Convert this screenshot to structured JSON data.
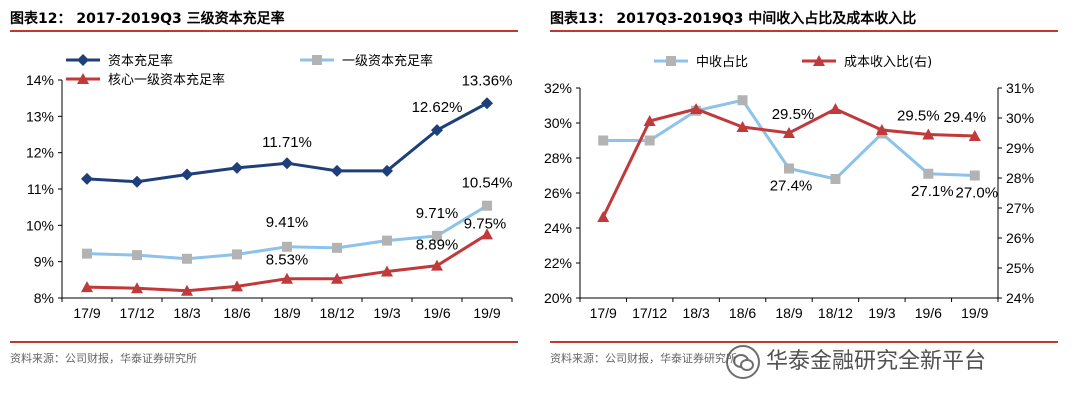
{
  "left": {
    "title": "图表12：  2017-2019Q3 三级资本充足率",
    "source": "资料来源：公司财报，华泰证券研究所"
  },
  "right": {
    "title": "图表13：  2017Q3-2019Q3 中间收入占比及成本收入比",
    "source": "资料来源：公司财报，华泰证券研究所"
  },
  "watermark": {
    "text": "华泰金融研究全新平台",
    "icon": "wechat-icon"
  },
  "chart_data": [
    {
      "type": "line",
      "categories": [
        "17/9",
        "17/12",
        "18/3",
        "18/6",
        "18/9",
        "18/12",
        "19/3",
        "19/6",
        "19/9"
      ],
      "ylim": [
        8,
        14
      ],
      "yticks": [
        "8%",
        "9%",
        "10%",
        "11%",
        "12%",
        "13%",
        "14%"
      ],
      "series": [
        {
          "name": "资本充足率",
          "color": "#1f3f7a",
          "marker": "diamond",
          "values": [
            11.28,
            11.2,
            11.4,
            11.58,
            11.71,
            11.5,
            11.5,
            12.62,
            13.36
          ],
          "labels": {
            "4": "11.71%",
            "7": "12.62%",
            "8": "13.36%"
          }
        },
        {
          "name": "一级资本充足率",
          "color": "#8dc3ea",
          "marker": "square",
          "values": [
            9.22,
            9.18,
            9.08,
            9.2,
            9.41,
            9.38,
            9.58,
            9.71,
            10.54
          ],
          "labels": {
            "4": "9.41%",
            "7": "9.71%",
            "8": "10.54%"
          }
        },
        {
          "name": "核心一级资本充足率",
          "color": "#c0393b",
          "marker": "triangle",
          "values": [
            8.3,
            8.27,
            8.2,
            8.32,
            8.53,
            8.53,
            8.73,
            8.89,
            9.75
          ],
          "labels": {
            "4": "8.53%",
            "7": "8.89%",
            "8": "9.75%"
          }
        }
      ],
      "legend": "top-left"
    },
    {
      "type": "line",
      "categories": [
        "17/9",
        "17/12",
        "18/3",
        "18/6",
        "18/9",
        "18/12",
        "19/3",
        "19/6",
        "19/9"
      ],
      "ylim": [
        20,
        32
      ],
      "y2lim": [
        24,
        31
      ],
      "yticks": [
        "20%",
        "22%",
        "24%",
        "26%",
        "28%",
        "30%",
        "32%"
      ],
      "y2ticks": [
        "24%",
        "25%",
        "26%",
        "27%",
        "28%",
        "29%",
        "30%",
        "31%"
      ],
      "series": [
        {
          "name": "中收占比",
          "color": "#8dc3ea",
          "marker": "square",
          "axis": "left",
          "values": [
            29.0,
            29.0,
            30.7,
            31.3,
            27.4,
            26.8,
            29.4,
            27.1,
            27.0
          ],
          "labels": {
            "4": "27.4%",
            "7": "27.1%",
            "8": "27.0%"
          }
        },
        {
          "name": "成本收入比(右)",
          "color": "#c0393b",
          "marker": "triangle",
          "axis": "right",
          "values": [
            26.7,
            29.9,
            30.3,
            29.7,
            29.5,
            30.3,
            29.6,
            29.45,
            29.4
          ],
          "labels": {
            "4": "29.5%",
            "7": "29.5%",
            "8": "29.4%"
          }
        }
      ],
      "legend": "top"
    }
  ]
}
